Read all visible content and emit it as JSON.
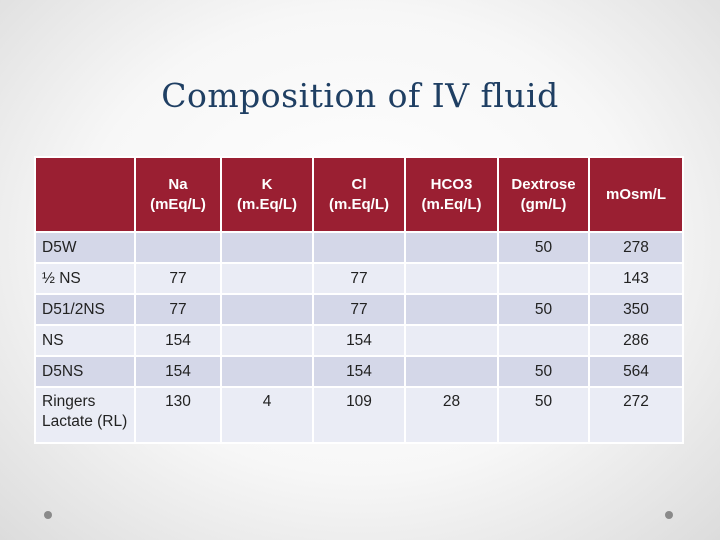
{
  "title": "Composition of IV fluid",
  "table": {
    "headers": [
      "",
      "Na (m.Eq/L)",
      "K (m.Eq/L)",
      "Cl (m.Eq/L)",
      "HCO3 (m.Eq/L)",
      "Dextrose (gm/L)",
      "mOsm/L"
    ],
    "header_lines": [
      [
        "",
        ""
      ],
      [
        "Na",
        "(mEq/L)"
      ],
      [
        "K",
        "(m.Eq/L)"
      ],
      [
        "Cl",
        "(m.Eq/L)"
      ],
      [
        "HCO3",
        "(m.Eq/L)"
      ],
      [
        "Dextrose",
        "(gm/L)"
      ],
      [
        "mOsm/L",
        ""
      ]
    ],
    "rows": [
      [
        "D5W",
        "",
        "",
        "",
        "",
        "50",
        "278"
      ],
      [
        "½ NS",
        "77",
        "",
        "77",
        "",
        "",
        "143"
      ],
      [
        "D51/2NS",
        "77",
        "",
        "77",
        "",
        "50",
        "350"
      ],
      [
        "NS",
        "154",
        "",
        "154",
        "",
        "",
        "286"
      ],
      [
        "D5NS",
        "154",
        "",
        "154",
        "",
        "50",
        "564"
      ],
      [
        "Ringers Lactate (RL)",
        "130",
        "4",
        "109",
        "28",
        "50",
        "272"
      ]
    ],
    "last_row_label_lines": [
      "Ringers",
      "Lactate (RL)"
    ]
  },
  "colors": {
    "header_bg": "#9a1f32",
    "row_odd": "#d4d7e8",
    "row_even": "#eaecf5",
    "title": "#1f3f63"
  }
}
